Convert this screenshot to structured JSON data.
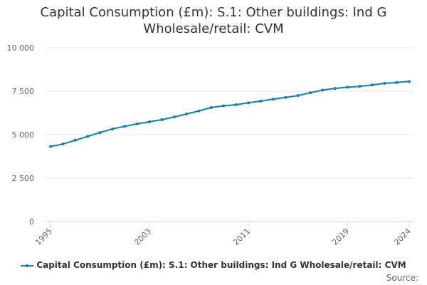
{
  "colors": {
    "series": "#0f7dba",
    "grid": "#e6e6e6",
    "text": "#666666",
    "title": "#333333"
  },
  "source_label": "Source:",
  "chart_data": {
    "type": "line",
    "title_lines": [
      "Capital Consumption (£m): S.1: Other buildings: Ind G",
      "Wholesale/retail: CVM"
    ],
    "xlabel": "",
    "ylabel": "",
    "ylim": [
      0,
      10000
    ],
    "y_ticks": [
      {
        "value": 0,
        "label": "0"
      },
      {
        "value": 2500,
        "label": "2 500"
      },
      {
        "value": 5000,
        "label": "5 000"
      },
      {
        "value": 7500,
        "label": "7 500"
      },
      {
        "value": 10000,
        "label": "10 000"
      }
    ],
    "xlim": [
      1995,
      2024
    ],
    "x_ticks": [
      {
        "value": 1995,
        "label": "1995"
      },
      {
        "value": 2003,
        "label": "2003"
      },
      {
        "value": 2011,
        "label": "2011"
      },
      {
        "value": 2019,
        "label": "2019"
      },
      {
        "value": 2024,
        "label": "2024"
      }
    ],
    "grid": true,
    "legend_position": "bottom",
    "series": [
      {
        "name": "Capital Consumption (£m): S.1: Other buildings: Ind G Wholesale/retail: CVM",
        "x": [
          1995,
          1996,
          1997,
          1998,
          1999,
          2000,
          2001,
          2002,
          2003,
          2004,
          2005,
          2006,
          2007,
          2008,
          2009,
          2010,
          2011,
          2012,
          2013,
          2014,
          2015,
          2016,
          2017,
          2018,
          2019,
          2020,
          2021,
          2022,
          2023,
          2024
        ],
        "values": [
          4320,
          4460,
          4680,
          4900,
          5120,
          5330,
          5480,
          5620,
          5740,
          5860,
          6020,
          6190,
          6370,
          6560,
          6660,
          6720,
          6830,
          6930,
          7040,
          7140,
          7250,
          7410,
          7560,
          7660,
          7730,
          7780,
          7860,
          7950,
          8000,
          8060
        ]
      }
    ]
  }
}
